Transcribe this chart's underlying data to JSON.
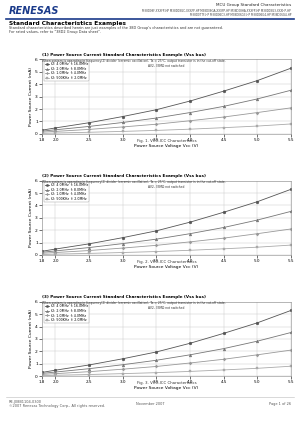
{
  "title_right": "MCU Group Standard Characteristics",
  "chips_line1": "M38D08F-XXXFP-HP M38D08GC-XXXFP-HP M38D08GA-XXXFP-HP M38D08HA-XXXFP-HP M38D08G3-XXXHP-HP",
  "chips_line2": "M38D07TF-HP M38D06C3-HP M38D06G3-HP M38D06G4-HP M38D06G4-HP",
  "section_title": "Standard Characteristics Examples",
  "section_desc1": "Standard characteristics described herein are just examples of the 38D Group's characteristics and are not guaranteed.",
  "section_desc2": "For rated values, refer to \"38D2 Group Data sheet\".",
  "chart1_title": "(1) Power Source Current Standard Characteristics Example (Vss bus)",
  "chart1_subtitle": "When system is operating in frequency(2) divider (ceramic oscillation), Ta = 25°C, output transistor is in the cut-off state.",
  "chart1_subtitle2": "AV2, 33MΩ not switched",
  "chart1_xlabel": "Power Source Voltage Vcc (V)",
  "chart1_ylabel": "Power Source Current (mA)",
  "chart1_legend": [
    "f2: 4.0MHz  f: 16.0MHz",
    "f2: 2.0MHz  f: 8.0MHz",
    "f2: 1.0MHz  f: 4.0MHz",
    "f2: 500KHz  f: 2.0MHz"
  ],
  "chart1_markers": [
    "o",
    "^",
    "P",
    "s"
  ],
  "chart1_xdata": [
    1.8,
    2.0,
    2.5,
    3.0,
    3.5,
    4.0,
    4.5,
    5.0,
    5.5
  ],
  "chart1_ydata": [
    [
      0.3,
      0.48,
      0.9,
      1.4,
      1.95,
      2.65,
      3.45,
      4.3,
      5.3
    ],
    [
      0.22,
      0.33,
      0.6,
      0.92,
      1.28,
      1.72,
      2.22,
      2.82,
      3.52
    ],
    [
      0.14,
      0.2,
      0.36,
      0.56,
      0.78,
      1.06,
      1.36,
      1.72,
      2.1
    ],
    [
      0.04,
      0.07,
      0.13,
      0.2,
      0.28,
      0.38,
      0.5,
      0.63,
      0.8
    ]
  ],
  "chart1_xlim": [
    1.8,
    5.5
  ],
  "chart1_ylim": [
    0,
    6.0
  ],
  "chart1_yticks": [
    0,
    1.0,
    2.0,
    3.0,
    4.0,
    5.0,
    6.0
  ],
  "chart1_xticks": [
    1.8,
    2.0,
    2.5,
    3.0,
    3.5,
    4.0,
    4.5,
    5.0,
    5.5
  ],
  "chart1_figno": "Fig. 1. VCC-ICC Characteristics",
  "chart2_title": "(2) Power Source Current Standard Characteristics Example (Vss bus)",
  "chart2_subtitle": "When system is operating in frequency(2) divider (ceramic oscillation), Ta = 25°C, output transistor is in the cut-off state.",
  "chart2_subtitle2": "AV2, 33MΩ not switched",
  "chart2_xlabel": "Power Source Voltage Vcc (V)",
  "chart2_ylabel": "Power Source Current (mA)",
  "chart2_legend": [
    "f2: 4.0MHz  f: 16.0MHz",
    "f2: 2.0MHz  f: 8.0MHz",
    "f2: 1.0MHz  f: 4.0MHz",
    "f2: 500KHz  f: 2.0MHz"
  ],
  "chart2_markers": [
    "o",
    "^",
    "P",
    "s"
  ],
  "chart2_xdata": [
    1.8,
    2.0,
    2.5,
    3.0,
    3.5,
    4.0,
    4.5,
    5.0,
    5.5
  ],
  "chart2_ydata": [
    [
      0.3,
      0.48,
      0.9,
      1.4,
      1.95,
      2.65,
      3.45,
      4.3,
      5.3
    ],
    [
      0.22,
      0.33,
      0.6,
      0.92,
      1.28,
      1.72,
      2.22,
      2.82,
      3.52
    ],
    [
      0.14,
      0.2,
      0.36,
      0.56,
      0.78,
      1.06,
      1.36,
      1.72,
      2.1
    ],
    [
      0.04,
      0.07,
      0.13,
      0.2,
      0.28,
      0.38,
      0.5,
      0.63,
      0.8
    ]
  ],
  "chart2_xlim": [
    1.8,
    5.5
  ],
  "chart2_ylim": [
    0,
    6.0
  ],
  "chart2_yticks": [
    0,
    1.0,
    2.0,
    3.0,
    4.0,
    5.0,
    6.0
  ],
  "chart2_xticks": [
    1.8,
    2.0,
    2.5,
    3.0,
    3.5,
    4.0,
    4.5,
    5.0,
    5.5
  ],
  "chart2_figno": "Fig. 2. VCC-ICC Characteristics",
  "chart3_title": "(3) Power Source Current Standard Characteristics Example (Vss bus)",
  "chart3_subtitle": "When system is operating in frequency(2) divider (ceramic oscillation), Ta = 25°C, output transistor is in the cut-off state.",
  "chart3_subtitle2": "AV2, 33MΩ not switched",
  "chart3_xlabel": "Power Source Voltage Vcc (V)",
  "chart3_ylabel": "Power Source Current (mA)",
  "chart3_legend": [
    "f2: 4.0MHz  f: 16.0MHz",
    "f2: 2.0MHz  f: 8.0MHz",
    "f2: 1.0MHz  f: 4.0MHz",
    "f2: 500KHz  f: 2.0MHz"
  ],
  "chart3_markers": [
    "o",
    "^",
    "P",
    "s"
  ],
  "chart3_xdata": [
    1.8,
    2.0,
    2.5,
    3.0,
    3.5,
    4.0,
    4.5,
    5.0,
    5.5
  ],
  "chart3_ydata": [
    [
      0.3,
      0.48,
      0.9,
      1.4,
      1.95,
      2.65,
      3.45,
      4.3,
      5.3
    ],
    [
      0.22,
      0.33,
      0.6,
      0.92,
      1.28,
      1.72,
      2.22,
      2.82,
      3.52
    ],
    [
      0.14,
      0.2,
      0.36,
      0.56,
      0.78,
      1.06,
      1.36,
      1.72,
      2.1
    ],
    [
      0.04,
      0.07,
      0.13,
      0.2,
      0.28,
      0.38,
      0.5,
      0.63,
      0.8
    ]
  ],
  "chart3_xlim": [
    1.8,
    5.5
  ],
  "chart3_ylim": [
    0,
    6.0
  ],
  "chart3_yticks": [
    0,
    1.0,
    2.0,
    3.0,
    4.0,
    5.0,
    6.0
  ],
  "chart3_xticks": [
    1.8,
    2.0,
    2.5,
    3.0,
    3.5,
    4.0,
    4.5,
    5.0,
    5.5
  ],
  "chart3_figno": "Fig. 3. VCC-ICC Characteristics",
  "footer_left1": "RE.J08B1104-0300",
  "footer_left2": "©2007 Renesas Technology Corp., All rights reserved.",
  "footer_center": "November 2007",
  "footer_right": "Page 1 of 26",
  "bg_color": "#ffffff",
  "grid_color": "#cccccc",
  "line_color": "#777777",
  "renesas_blue": "#1a3a8a",
  "header_bar_color": "#1a3a8a"
}
